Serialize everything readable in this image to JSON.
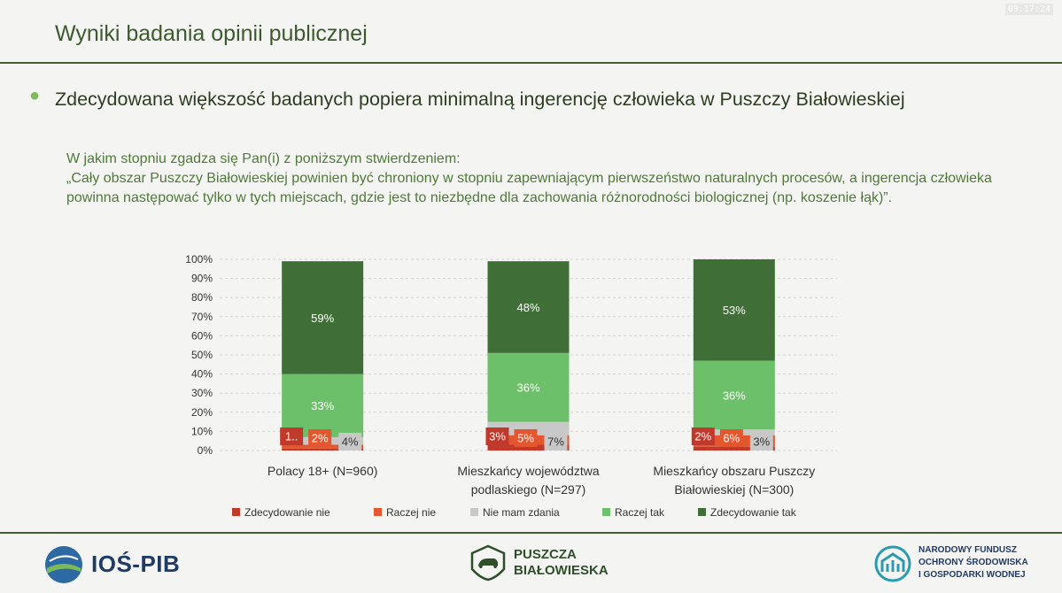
{
  "clock": "09:17:24",
  "slide_title": "Wyniki badania opinii publicznej",
  "headline": "Zdecydowana większość badanych popiera minimalną ingerencję człowieka w Puszczy Białowieskiej",
  "question": {
    "line1": "W jakim stopniu zgadza się Pan(i) z poniższym stwierdzeniem:",
    "line2": "„Cały obszar Puszczy Białowieskiej powinien być chroniony w stopniu zapewniającym pierwszeństwo naturalnych procesów, a ingerencja człowieka powinna następować tylko w tych miejscach, gdzie jest to niezbędne dla zachowania różnorodności biologicznej (np. koszenie łąk)”."
  },
  "colors": {
    "Zdecydowanie nie": "#c0392b",
    "Raczej nie": "#e4572e",
    "Nie mam zdania": "#c8c8c8",
    "Raczej tak": "#6cc069",
    "Zdecydowanie tak": "#3f6f37"
  },
  "chart_data": {
    "type": "bar",
    "stacked": true,
    "ylim": [
      0,
      100
    ],
    "yticks": [
      "0%",
      "10%",
      "20%",
      "30%",
      "40%",
      "50%",
      "60%",
      "70%",
      "80%",
      "90%",
      "100%"
    ],
    "categories": [
      [
        "Polacy 18+ (N=960)"
      ],
      [
        "Mieszkańcy województwa",
        "podlaskiego (N=297)"
      ],
      [
        "Mieszkańcy obszaru Puszczy",
        "Białowieskiej (N=300)"
      ]
    ],
    "series": [
      {
        "name": "Zdecydowanie nie",
        "values": [
          1,
          3,
          2
        ],
        "labels": [
          "1..",
          "3%",
          "2%"
        ]
      },
      {
        "name": "Raczej nie",
        "values": [
          2,
          5,
          6
        ],
        "labels": [
          "2%",
          "5%",
          "6%"
        ]
      },
      {
        "name": "Nie mam zdania",
        "values": [
          4,
          7,
          3
        ],
        "labels": [
          "4%",
          "7%",
          "3%"
        ]
      },
      {
        "name": "Raczej tak",
        "values": [
          33,
          36,
          36
        ],
        "labels": [
          "33%",
          "36%",
          "36%"
        ]
      },
      {
        "name": "Zdecydowanie tak",
        "values": [
          59,
          48,
          53
        ],
        "labels": [
          "59%",
          "48%",
          "53%"
        ]
      }
    ],
    "legend_position": "bottom",
    "grid": true
  },
  "logos": {
    "left": "IOŚ-PIB",
    "center_line1": "PUSZCZA",
    "center_line2": "BIAŁOWIESKA",
    "right_line1": "NARODOWY FUNDUSZ",
    "right_line2": "OCHRONY ŚRODOWISKA",
    "right_line3": "I GOSPODARKI WODNEJ"
  }
}
